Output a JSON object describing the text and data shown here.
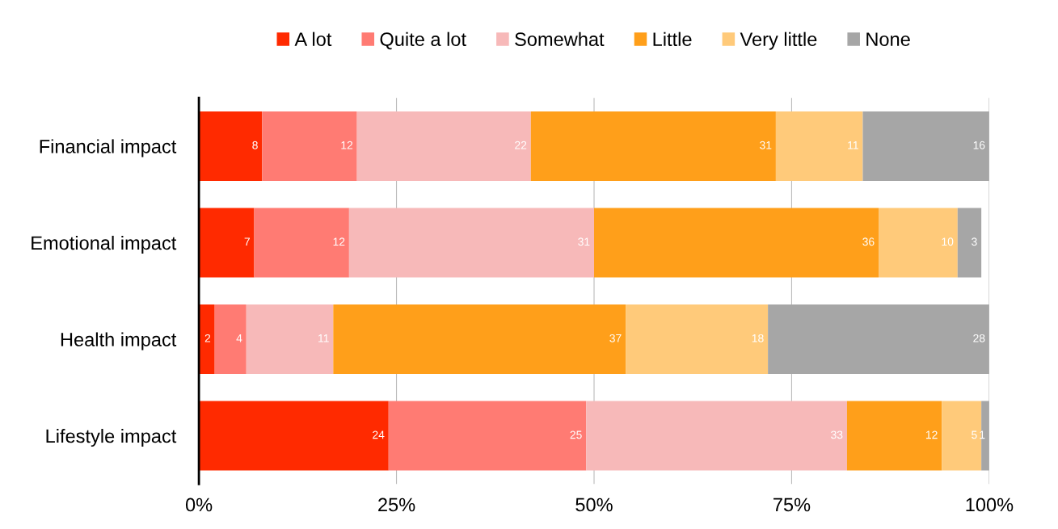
{
  "chart_data": {
    "type": "bar",
    "orientation": "horizontal",
    "stacked": true,
    "data_labels": true,
    "grid": "x",
    "legend": "top",
    "categories": [
      "Financial impact",
      "Emotional impact",
      "Health impact",
      "Lifestyle impact"
    ],
    "series": [
      {
        "name": "A lot",
        "color": "#ff2a00",
        "values": [
          8,
          7,
          2,
          24
        ]
      },
      {
        "name": "Quite a lot",
        "color": "#ff7b73",
        "values": [
          12,
          12,
          4,
          25
        ]
      },
      {
        "name": "Somewhat",
        "color": "#f7b9b9",
        "values": [
          22,
          31,
          11,
          33
        ]
      },
      {
        "name": "Little",
        "color": "#ff9f1a",
        "values": [
          31,
          36,
          37,
          12
        ]
      },
      {
        "name": "Very little",
        "color": "#ffca7a",
        "values": [
          11,
          10,
          18,
          5
        ]
      },
      {
        "name": "None",
        "color": "#a6a6a6",
        "values": [
          16,
          3,
          28,
          1
        ]
      }
    ],
    "xlim": [
      0,
      100
    ],
    "xticks": [
      {
        "value": 0,
        "label": "0%"
      },
      {
        "value": 25,
        "label": "25%"
      },
      {
        "value": 50,
        "label": "50%"
      },
      {
        "value": 75,
        "label": "75%"
      },
      {
        "value": 100,
        "label": "100%"
      }
    ]
  }
}
